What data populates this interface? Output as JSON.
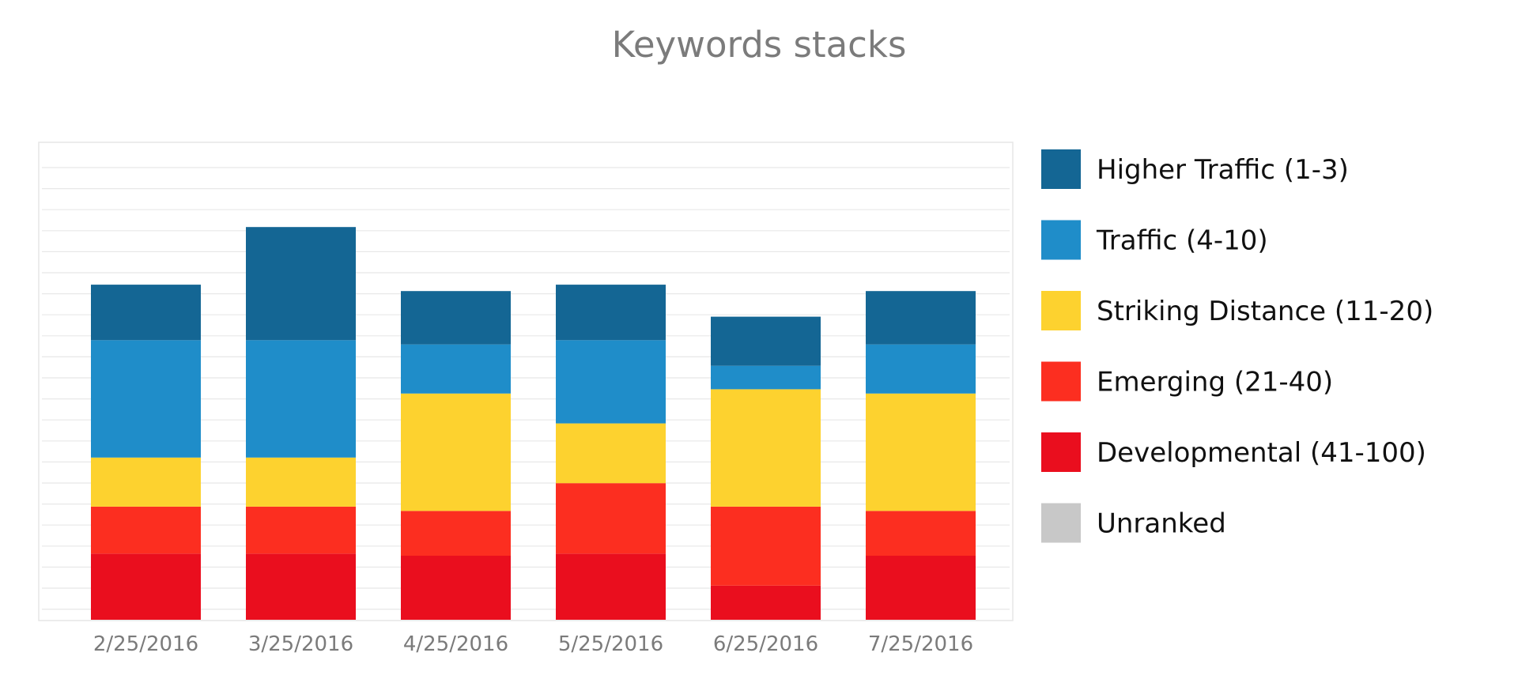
{
  "chart_data": {
    "type": "bar",
    "stacked": true,
    "title": "Keywords stacks",
    "categories": [
      "2/25/2016",
      "3/25/2016",
      "4/25/2016",
      "5/25/2016",
      "6/25/2016",
      "7/25/2016"
    ],
    "series": [
      {
        "name": "Developmental (41-100)",
        "color": "#ea0e1e",
        "values": [
          31,
          31,
          30,
          31,
          16,
          30
        ]
      },
      {
        "name": "Emerging (21-40)",
        "color": "#fc2e20",
        "values": [
          22,
          22,
          21,
          33,
          37,
          21
        ]
      },
      {
        "name": "Striking Distance (11-20)",
        "color": "#fdd22f",
        "values": [
          23,
          23,
          55,
          28,
          55,
          55
        ]
      },
      {
        "name": "Traffic (4-10)",
        "color": "#1f8dc9",
        "values": [
          55,
          55,
          23,
          39,
          11,
          23
        ]
      },
      {
        "name": "Higher Traffic (1-3)",
        "color": "#146694",
        "values": [
          26,
          53,
          25,
          26,
          23,
          25
        ]
      },
      {
        "name": "Unranked",
        "color": "#c8c8c8",
        "values": [
          0,
          0,
          0,
          0,
          0,
          0
        ]
      }
    ],
    "legend_order": [
      "Higher Traffic (1-3)",
      "Traffic (4-10)",
      "Striking Distance (11-20)",
      "Emerging (21-40)",
      "Developmental (41-100)",
      "Unranked"
    ],
    "ylim": [
      0,
      225
    ],
    "grid": true,
    "legend_position": "right"
  }
}
